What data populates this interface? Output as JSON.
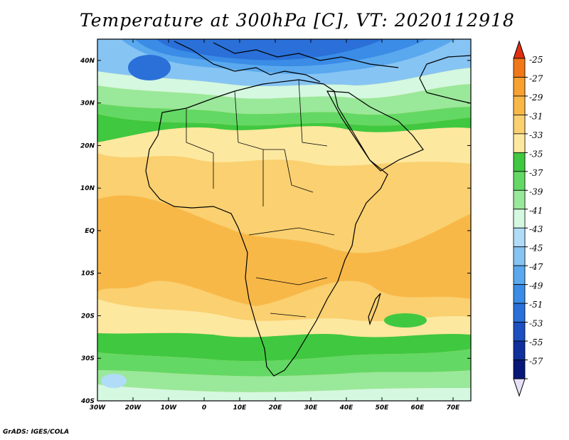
{
  "title": "Temperature at 300hPa [C], VT: 2020112918",
  "credit": "GrADS: IGES/COLA",
  "map": {
    "lon_range": [
      -30,
      75
    ],
    "lat_range": [
      -40,
      45
    ],
    "lat_ticks": [
      {
        "value": 40,
        "label": "40N"
      },
      {
        "value": 30,
        "label": "30N"
      },
      {
        "value": 20,
        "label": "20N"
      },
      {
        "value": 10,
        "label": "10N"
      },
      {
        "value": 0,
        "label": "EQ"
      },
      {
        "value": -10,
        "label": "10S"
      },
      {
        "value": -20,
        "label": "20S"
      },
      {
        "value": -30,
        "label": "30S"
      },
      {
        "value": -40,
        "label": "40S"
      }
    ],
    "lon_ticks": [
      {
        "value": -30,
        "label": "30W"
      },
      {
        "value": -20,
        "label": "20W"
      },
      {
        "value": -10,
        "label": "10W"
      },
      {
        "value": 0,
        "label": "0"
      },
      {
        "value": 10,
        "label": "10E"
      },
      {
        "value": 20,
        "label": "20E"
      },
      {
        "value": 30,
        "label": "30E"
      },
      {
        "value": 40,
        "label": "40E"
      },
      {
        "value": 50,
        "label": "50E"
      },
      {
        "value": 60,
        "label": "60E"
      },
      {
        "value": 70,
        "label": "70E"
      }
    ]
  },
  "colorbar": {
    "levels": [
      {
        "label": "-25",
        "color": "#f07818"
      },
      {
        "label": "-27",
        "color": "#f8a030"
      },
      {
        "label": "-29",
        "color": "#f8b848"
      },
      {
        "label": "-31",
        "color": "#fad070"
      },
      {
        "label": "-33",
        "color": "#fde8a0"
      },
      {
        "label": "-35",
        "color": "#40c840"
      },
      {
        "label": "-37",
        "color": "#64d864"
      },
      {
        "label": "-39",
        "color": "#9ae89a"
      },
      {
        "label": "-41",
        "color": "#d4f8e0"
      },
      {
        "label": "-43",
        "color": "#b0dcf8"
      },
      {
        "label": "-45",
        "color": "#86c4f4"
      },
      {
        "label": "-47",
        "color": "#5aa8ee"
      },
      {
        "label": "-49",
        "color": "#3a8ce6"
      },
      {
        "label": "-51",
        "color": "#2a70d8"
      },
      {
        "label": "-53",
        "color": "#1c50c0"
      },
      {
        "label": "-55",
        "color": "#10309c"
      },
      {
        "label": "-57",
        "color": "#081878"
      }
    ],
    "top_arrow_color": "#e03010",
    "bottom_arrow_color": "#e6e0f8"
  }
}
